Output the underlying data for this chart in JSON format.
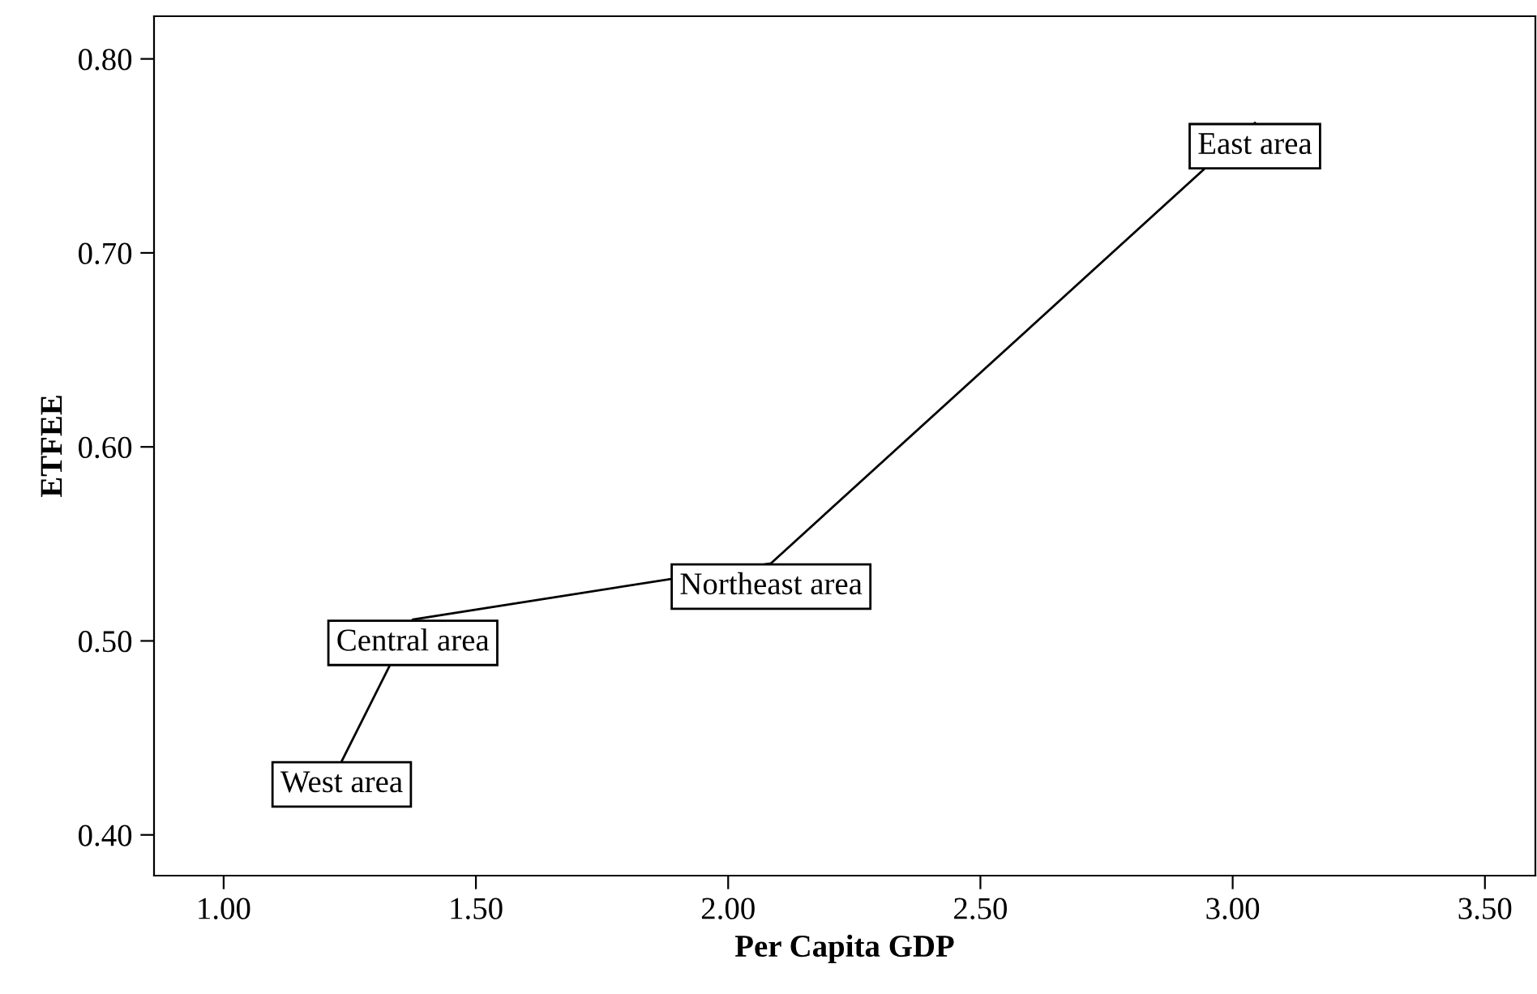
{
  "chart_data": {
    "type": "line",
    "xlabel": "Per Capita GDP",
    "ylabel": "ETFEE",
    "x": [
      1.234,
      1.375,
      2.085,
      3.044
    ],
    "series": [
      {
        "color": "#000000",
        "values": [
          0.438,
          0.511,
          0.54,
          0.767
        ]
      }
    ],
    "annotations": [
      {
        "text": "West area",
        "x": 1.234,
        "y": 0.438
      },
      {
        "text": "Central area",
        "x": 1.375,
        "y": 0.511
      },
      {
        "text": "Northeast area",
        "x": 2.085,
        "y": 0.54
      },
      {
        "text": "East area",
        "x": 3.044,
        "y": 0.767
      }
    ],
    "xlim": [
      0.862,
      3.6
    ],
    "xticks": [
      {
        "value": 1.0,
        "label": "1.00"
      },
      {
        "value": 1.5,
        "label": "1.50"
      },
      {
        "value": 2.0,
        "label": "2.00"
      },
      {
        "value": 2.5,
        "label": "2.50"
      },
      {
        "value": 3.0,
        "label": "3.00"
      },
      {
        "value": 3.5,
        "label": "3.50"
      }
    ],
    "ylim": [
      0.379,
      0.822
    ],
    "yticks": [
      {
        "value": 0.4,
        "label": "0.40"
      },
      {
        "value": 0.5,
        "label": "0.50"
      },
      {
        "value": 0.6,
        "label": "0.60"
      },
      {
        "value": 0.7,
        "label": "0.70"
      },
      {
        "value": 0.8,
        "label": "0.80"
      }
    ],
    "grid": false,
    "legend": false,
    "line_style": "solid"
  }
}
